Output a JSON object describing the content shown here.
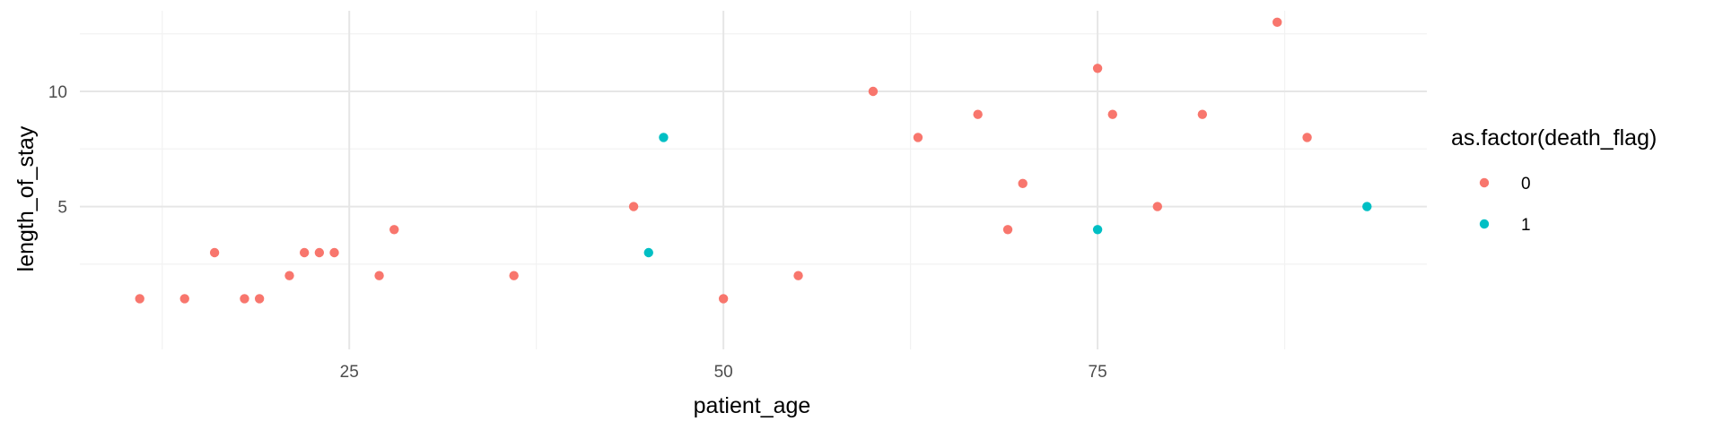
{
  "chart_data": {
    "type": "scatter",
    "xlabel": "patient_age",
    "ylabel": "length_of_stay",
    "xlim": [
      7,
      97
    ],
    "ylim": [
      -1.2,
      13.5
    ],
    "xticks": [
      25,
      50,
      75
    ],
    "yticks": [
      5,
      10
    ],
    "x_minor_ticks": [
      12.5,
      37.5,
      62.5,
      87.5
    ],
    "y_minor_ticks": [
      2.5,
      7.5,
      12.5
    ],
    "grid": true,
    "legend": {
      "title": "as.factor(death_flag)",
      "placement": "right"
    },
    "series": [
      {
        "name": "0",
        "color": "#F8766D",
        "points": [
          {
            "x": 11,
            "y": 1
          },
          {
            "x": 14,
            "y": 1
          },
          {
            "x": 16,
            "y": 3
          },
          {
            "x": 18,
            "y": 1
          },
          {
            "x": 19,
            "y": 1
          },
          {
            "x": 21,
            "y": 2
          },
          {
            "x": 22,
            "y": 3
          },
          {
            "x": 23,
            "y": 3
          },
          {
            "x": 24,
            "y": 3
          },
          {
            "x": 27,
            "y": 2
          },
          {
            "x": 28,
            "y": 4
          },
          {
            "x": 36,
            "y": 2
          },
          {
            "x": 44,
            "y": 5
          },
          {
            "x": 50,
            "y": 1
          },
          {
            "x": 55,
            "y": 2
          },
          {
            "x": 60,
            "y": 10
          },
          {
            "x": 63,
            "y": 8
          },
          {
            "x": 67,
            "y": 9
          },
          {
            "x": 69,
            "y": 4
          },
          {
            "x": 70,
            "y": 6
          },
          {
            "x": 75,
            "y": 11
          },
          {
            "x": 76,
            "y": 9
          },
          {
            "x": 79,
            "y": 5
          },
          {
            "x": 82,
            "y": 9
          },
          {
            "x": 87,
            "y": 13
          },
          {
            "x": 89,
            "y": 8
          }
        ]
      },
      {
        "name": "1",
        "color": "#00BFC4",
        "points": [
          {
            "x": 45,
            "y": 3
          },
          {
            "x": 46,
            "y": 8
          },
          {
            "x": 75,
            "y": 4
          },
          {
            "x": 93,
            "y": 5
          }
        ]
      }
    ]
  }
}
